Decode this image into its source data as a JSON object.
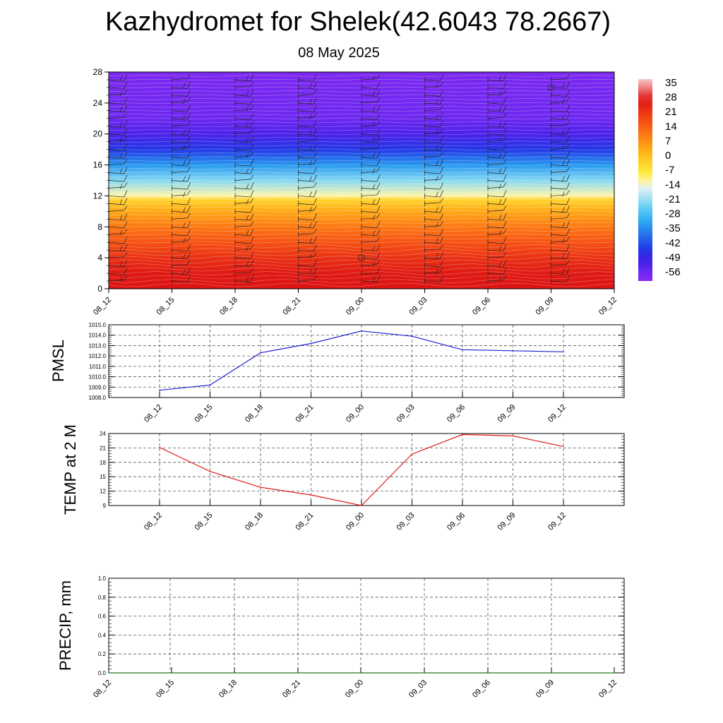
{
  "header": {
    "title": "Kazhydromet for Shelek(42.6043 78.2667)",
    "subtitle": "08 May 2025"
  },
  "colors": {
    "pmsl_line": "#1f1fd6",
    "temp_line": "#e01a1a",
    "precip_line": "#1f7a1f",
    "grid": "#555555"
  },
  "chart_data": [
    {
      "type": "heatmap",
      "title": "",
      "x_categories": [
        "08_12",
        "08_15",
        "08_18",
        "08_21",
        "09_00",
        "09_03",
        "09_06",
        "09_09",
        "09_12"
      ],
      "ylim": [
        0,
        28
      ],
      "yticks": [
        0,
        4,
        8,
        12,
        16,
        20,
        24,
        28
      ],
      "colorbar": {
        "labels": [
          "35",
          "28",
          "21",
          "14",
          "7",
          "0",
          "-7",
          "-14",
          "-21",
          "-28",
          "-35",
          "-42",
          "-49",
          "-56"
        ],
        "range": [
          -60,
          38
        ]
      },
      "temperature_profile": [
        {
          "level": 0,
          "value": 28
        },
        {
          "level": 2,
          "value": 27
        },
        {
          "level": 4,
          "value": 23
        },
        {
          "level": 6,
          "value": 17
        },
        {
          "level": 8,
          "value": 11
        },
        {
          "level": 10,
          "value": 4
        },
        {
          "level": 11.5,
          "value": -3
        },
        {
          "level": 12,
          "value": -12
        },
        {
          "level": 14,
          "value": -22
        },
        {
          "level": 16,
          "value": -33
        },
        {
          "level": 18,
          "value": -45
        },
        {
          "level": 20,
          "value": -52
        },
        {
          "level": 22,
          "value": -56
        },
        {
          "level": 28,
          "value": -58
        }
      ],
      "wind_barb_levels": [
        1,
        2,
        3,
        4,
        5,
        6,
        7,
        8,
        9,
        10,
        11,
        12,
        13,
        14,
        15,
        16,
        17,
        18,
        19,
        20,
        21,
        22,
        23,
        24,
        25,
        26,
        27
      ]
    },
    {
      "type": "line",
      "ylabel": "PMSL",
      "ylim": [
        1008,
        1015
      ],
      "yticks": [
        "1008.0",
        "1009.0",
        "1010.0",
        "1011.0",
        "1012.0",
        "1013.0",
        "1014.0",
        "1015.0"
      ],
      "categories": [
        "08_12",
        "08_15",
        "08_18",
        "08_21",
        "09_00",
        "09_03",
        "09_06",
        "09_09",
        "09_12"
      ],
      "series": [
        {
          "values": [
            1008.7,
            1009.2,
            1012.3,
            1013.2,
            1014.4,
            1013.9,
            1012.6,
            1012.5,
            1012.4
          ]
        }
      ]
    },
    {
      "type": "line",
      "ylabel": "TEMP at 2 M",
      "ylim": [
        9,
        24
      ],
      "yticks": [
        "9",
        "12",
        "15",
        "18",
        "21",
        "24"
      ],
      "categories": [
        "08_12",
        "08_15",
        "08_18",
        "08_21",
        "09_00",
        "09_03",
        "09_06",
        "09_09",
        "09_12"
      ],
      "series": [
        {
          "values": [
            21.1,
            16.1,
            12.8,
            11.2,
            9.0,
            19.7,
            23.8,
            23.5,
            21.3
          ]
        }
      ]
    },
    {
      "type": "line",
      "ylabel": "PRECIP, mm",
      "ylim": [
        0,
        1
      ],
      "yticks": [
        "0.0",
        "0.2",
        "0.4",
        "0.6",
        "0.8",
        "1.0"
      ],
      "categories": [
        "08_12",
        "08_15",
        "08_18",
        "08_21",
        "09_00",
        "09_03",
        "09_06",
        "09_09",
        "09_12"
      ],
      "series": [
        {
          "values": [
            0,
            0,
            0,
            0,
            0,
            0,
            0,
            0,
            0
          ]
        }
      ]
    }
  ]
}
